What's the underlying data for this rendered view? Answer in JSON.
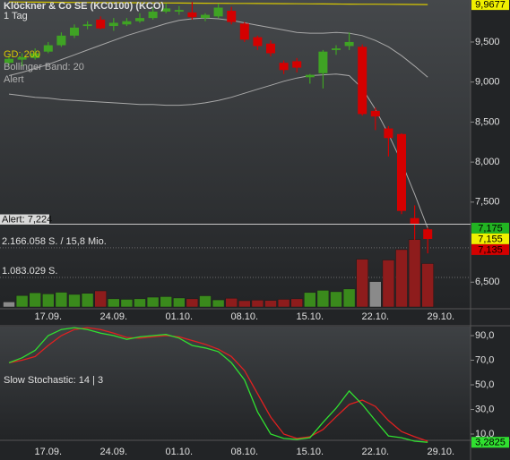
{
  "header": {
    "title": "Klöckner & Co SE (KC0100) (KCO)",
    "interval": "1 Tag"
  },
  "chart_data": [
    {
      "type": "candlestick",
      "categories": [
        null,
        null,
        null,
        "17.09.",
        null,
        null,
        null,
        null,
        "24.09.",
        null,
        null,
        null,
        null,
        "01.10.",
        null,
        null,
        null,
        null,
        "08.10.",
        null,
        null,
        null,
        null,
        "15.10.",
        null,
        null,
        null,
        null,
        "22.10.",
        null,
        null,
        null,
        null,
        "29.10."
      ],
      "open": [
        9.24,
        9.28,
        9.3,
        9.38,
        9.46,
        9.58,
        9.7,
        9.78,
        9.7,
        9.72,
        9.76,
        9.8,
        9.88,
        9.88,
        9.87,
        9.8,
        9.82,
        9.89,
        9.73,
        9.56,
        9.48,
        9.24,
        9.26,
        9.06,
        9.11,
        9.4,
        9.45,
        9.44,
        8.64,
        8.42,
        8.35,
        7.3,
        7.16,
        null
      ],
      "high": [
        9.33,
        9.36,
        9.42,
        9.5,
        9.62,
        9.72,
        9.76,
        9.82,
        9.8,
        9.8,
        9.86,
        9.93,
        9.98,
        9.95,
        10.0,
        9.86,
        9.98,
        9.94,
        9.75,
        9.58,
        9.52,
        9.27,
        9.3,
        9.1,
        9.4,
        9.46,
        9.62,
        9.47,
        8.68,
        8.45,
        8.36,
        7.46,
        7.18,
        null
      ],
      "low": [
        9.2,
        9.2,
        9.28,
        9.36,
        9.44,
        9.55,
        9.66,
        9.66,
        9.64,
        9.7,
        9.74,
        9.78,
        9.86,
        9.84,
        9.78,
        9.76,
        9.8,
        9.72,
        9.5,
        9.4,
        9.32,
        9.1,
        9.12,
        8.98,
        8.92,
        9.34,
        9.4,
        8.58,
        8.4,
        8.07,
        7.35,
        7.03,
        6.86,
        null
      ],
      "close": [
        9.29,
        9.31,
        9.36,
        9.46,
        9.58,
        9.68,
        9.72,
        9.67,
        9.74,
        9.76,
        9.8,
        9.88,
        9.92,
        9.9,
        9.81,
        9.84,
        9.93,
        9.75,
        9.53,
        9.45,
        9.36,
        9.15,
        9.18,
        9.09,
        9.38,
        9.42,
        9.5,
        8.6,
        8.57,
        8.3,
        7.39,
        7.23,
        7.04,
        null
      ],
      "up_color": "#3fa324",
      "down_color": "#d40000",
      "ylim": [
        6.19,
        10.025
      ],
      "yticks": [
        {
          "value": 9.5,
          "label": "9,500"
        },
        {
          "value": 9.0,
          "label": "9,000"
        },
        {
          "value": 8.5,
          "label": "8,500"
        },
        {
          "value": 8.0,
          "label": "8,000"
        },
        {
          "value": 7.5,
          "label": "7,500"
        },
        {
          "value": 6.5,
          "label": "6,500"
        }
      ],
      "moving_average": {
        "name": "GD: 200",
        "color": "#d8c800",
        "values": [
          10.0,
          9.999,
          9.998,
          9.997,
          9.996,
          9.995,
          9.994,
          9.993,
          9.992,
          9.991,
          9.99,
          9.989,
          9.988,
          9.987,
          9.986,
          9.985,
          9.984,
          9.983,
          9.982,
          9.981,
          9.98,
          9.979,
          9.978,
          9.977,
          9.976,
          9.975,
          9.974,
          9.973,
          9.972,
          9.971,
          9.97,
          9.969,
          9.968,
          null
        ]
      },
      "bands": {
        "name": "Bollinger Band: 20",
        "color": "#a8a8a8",
        "upper": [
          9.08,
          9.12,
          9.17,
          9.22,
          9.28,
          9.34,
          9.4,
          9.46,
          9.52,
          9.58,
          9.63,
          9.68,
          9.73,
          9.77,
          9.79,
          9.8,
          9.79,
          9.77,
          9.74,
          9.71,
          9.68,
          9.65,
          9.62,
          9.61,
          9.61,
          9.62,
          9.61,
          9.58,
          9.52,
          9.44,
          9.33,
          9.2,
          9.06,
          null
        ],
        "lower": [
          8.85,
          8.83,
          8.81,
          8.8,
          8.78,
          8.77,
          8.76,
          8.75,
          8.74,
          8.73,
          8.72,
          8.72,
          8.71,
          8.71,
          8.72,
          8.74,
          8.77,
          8.81,
          8.86,
          8.91,
          8.96,
          9.01,
          9.05,
          9.08,
          9.09,
          9.1,
          9.08,
          8.92,
          8.66,
          8.35,
          8.0,
          7.6,
          7.175,
          null
        ]
      },
      "alert": {
        "name": "Alert",
        "value": 7.224,
        "label": "Alert: 7,224",
        "color": "#c8c8c8"
      },
      "price_markers": [
        {
          "value": 9.9677,
          "label": "9,9677",
          "color": "#f0f000"
        },
        {
          "value": 7.175,
          "label": "7,175",
          "color": "#22b422"
        },
        {
          "value": 7.155,
          "label": "7,155",
          "color": "#f0f000"
        },
        {
          "value": 7.135,
          "label": "7,135",
          "color": "#d40000"
        }
      ],
      "volume": {
        "values": [
          185000,
          420000,
          520000,
          480000,
          540000,
          460000,
          500000,
          590000,
          300000,
          280000,
          300000,
          360000,
          380000,
          330000,
          300000,
          410000,
          260000,
          320000,
          230000,
          250000,
          240000,
          280000,
          300000,
          530000,
          610000,
          560000,
          660000,
          1750000,
          930000,
          1720000,
          2100000,
          2470000,
          1590000,
          null
        ],
        "colors": [
          "#8a8a8a",
          "#3a8a1c",
          "#3a8a1c",
          "#3a8a1c",
          "#3a8a1c",
          "#3a8a1c",
          "#3a8a1c",
          "#8e1c1c",
          "#3a8a1c",
          "#3a8a1c",
          "#3a8a1c",
          "#3a8a1c",
          "#3a8a1c",
          "#3a8a1c",
          "#8e1c1c",
          "#3a8a1c",
          "#3a8a1c",
          "#8e1c1c",
          "#8e1c1c",
          "#8e1c1c",
          "#8e1c1c",
          "#8e1c1c",
          "#8e1c1c",
          "#3a8a1c",
          "#3a8a1c",
          "#3a8a1c",
          "#3a8a1c",
          "#8e1c1c",
          "#8a8a8a",
          "#8e1c1c",
          "#8e1c1c",
          "#8e1c1c",
          "#8e1c1c",
          null
        ],
        "ylim": [
          0,
          2720000
        ],
        "yticks": [
          {
            "value": 2166058,
            "label": "2.166.058 S. / 15,8 Mio."
          },
          {
            "value": 1083029,
            "label": "1.083.029 S."
          }
        ]
      }
    },
    {
      "type": "line",
      "title": "Slow Stochastic: 14 | 3",
      "categories": [
        null,
        null,
        null,
        "17.09.",
        null,
        null,
        null,
        null,
        "24.09.",
        null,
        null,
        null,
        null,
        "01.10.",
        null,
        null,
        null,
        null,
        "08.10.",
        null,
        null,
        null,
        null,
        "15.10.",
        null,
        null,
        null,
        null,
        "22.10.",
        null,
        null,
        null,
        null,
        "29.10."
      ],
      "series": [
        {
          "color": "#e02020",
          "values": [
            68,
            70,
            73,
            82,
            90,
            95,
            96.5,
            95,
            92,
            88.5,
            88,
            89,
            90,
            89,
            86,
            83,
            79,
            73,
            61.6,
            42.7,
            23.8,
            10,
            6.4,
            7.8,
            13.6,
            24,
            34,
            37.6,
            32.5,
            21,
            12,
            7.8,
            4.2,
            null
          ]
        },
        {
          "color": "#30e030",
          "values": [
            68,
            72,
            78,
            90,
            95,
            96.5,
            95,
            92,
            90,
            87,
            89,
            90,
            91,
            88,
            82,
            80,
            77,
            68,
            54,
            28,
            10,
            6.4,
            5.6,
            7,
            19.5,
            31,
            45,
            34,
            21,
            8.5,
            7,
            4.2,
            3.28,
            null
          ]
        }
      ],
      "ylim": [
        4.9,
        97.3
      ],
      "yticks": [
        {
          "value": 90,
          "label": "90,0"
        },
        {
          "value": 70,
          "label": "70,0"
        },
        {
          "value": 50,
          "label": "50,0"
        },
        {
          "value": 30,
          "label": "30,0"
        },
        {
          "value": 10,
          "label": "10,0"
        }
      ],
      "markers": [
        {
          "value": 3.2825,
          "label": "3,2825",
          "color": "#30e030"
        }
      ]
    }
  ]
}
